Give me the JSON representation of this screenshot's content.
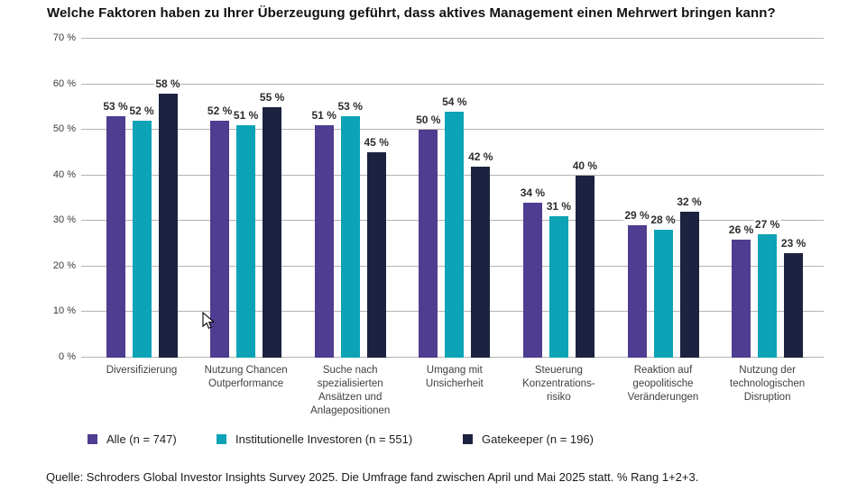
{
  "chart_data": {
    "type": "bar",
    "title": "Welche Faktoren haben zu Ihrer Überzeugung geführt, dass aktives Management einen Mehrwert bringen kann?",
    "xlabel": "",
    "ylabel": "",
    "ylim": [
      0,
      70
    ],
    "ytick_values": [
      0,
      10,
      20,
      30,
      40,
      50,
      60,
      70
    ],
    "ytick_labels": [
      "0 %",
      "10 %",
      "20 %",
      "30 %",
      "40 %",
      "50 %",
      "60 %",
      "70 %"
    ],
    "grid": true,
    "grid_color": "#b3b3b3",
    "value_label_suffix": " %",
    "legend_position": "bottom",
    "categories": [
      "Diversifizierung",
      "Nutzung Chancen Outperformance",
      "Suche nach spezialisierten Ansätzen und Anlagepositionen",
      "Umgang mit Unsicherheit",
      "Steuerung Konzentrations-risiko",
      "Reaktion auf geopolitische Veränderungen",
      "Nutzung der technologischen Disruption"
    ],
    "category_lines": [
      [
        "Diversifizierung"
      ],
      [
        "Nutzung Chancen",
        "Outperformance"
      ],
      [
        "Suche nach",
        "spezialisierten",
        "Ansätzen und",
        "Anlagepositionen"
      ],
      [
        "Umgang mit",
        "Unsicherheit"
      ],
      [
        "Steuerung",
        "Konzentrations-",
        "risiko"
      ],
      [
        "Reaktion auf",
        "geopolitische",
        "Veränderungen"
      ],
      [
        "Nutzung der",
        "technologischen",
        "Disruption"
      ]
    ],
    "series": [
      {
        "name": "Alle (n = 747)",
        "color": "#4e3d90",
        "values": [
          53,
          52,
          51,
          50,
          34,
          29,
          26
        ]
      },
      {
        "name": "Institutionelle Investoren (n = 551)",
        "color": "#0ba3b5",
        "values": [
          52,
          51,
          53,
          54,
          31,
          28,
          27
        ]
      },
      {
        "name": "Gatekeeper (n = 196)",
        "color": "#1b2340",
        "values": [
          58,
          55,
          45,
          42,
          40,
          32,
          23
        ]
      }
    ]
  },
  "footer": {
    "source": "Quelle: Schroders Global Investor Insights Survey 2025. Die Umfrage fand zwischen April und Mai 2025 statt. % Rang 1+2+3."
  },
  "icons": {
    "mouse_cursor": "arrow-pointer"
  }
}
